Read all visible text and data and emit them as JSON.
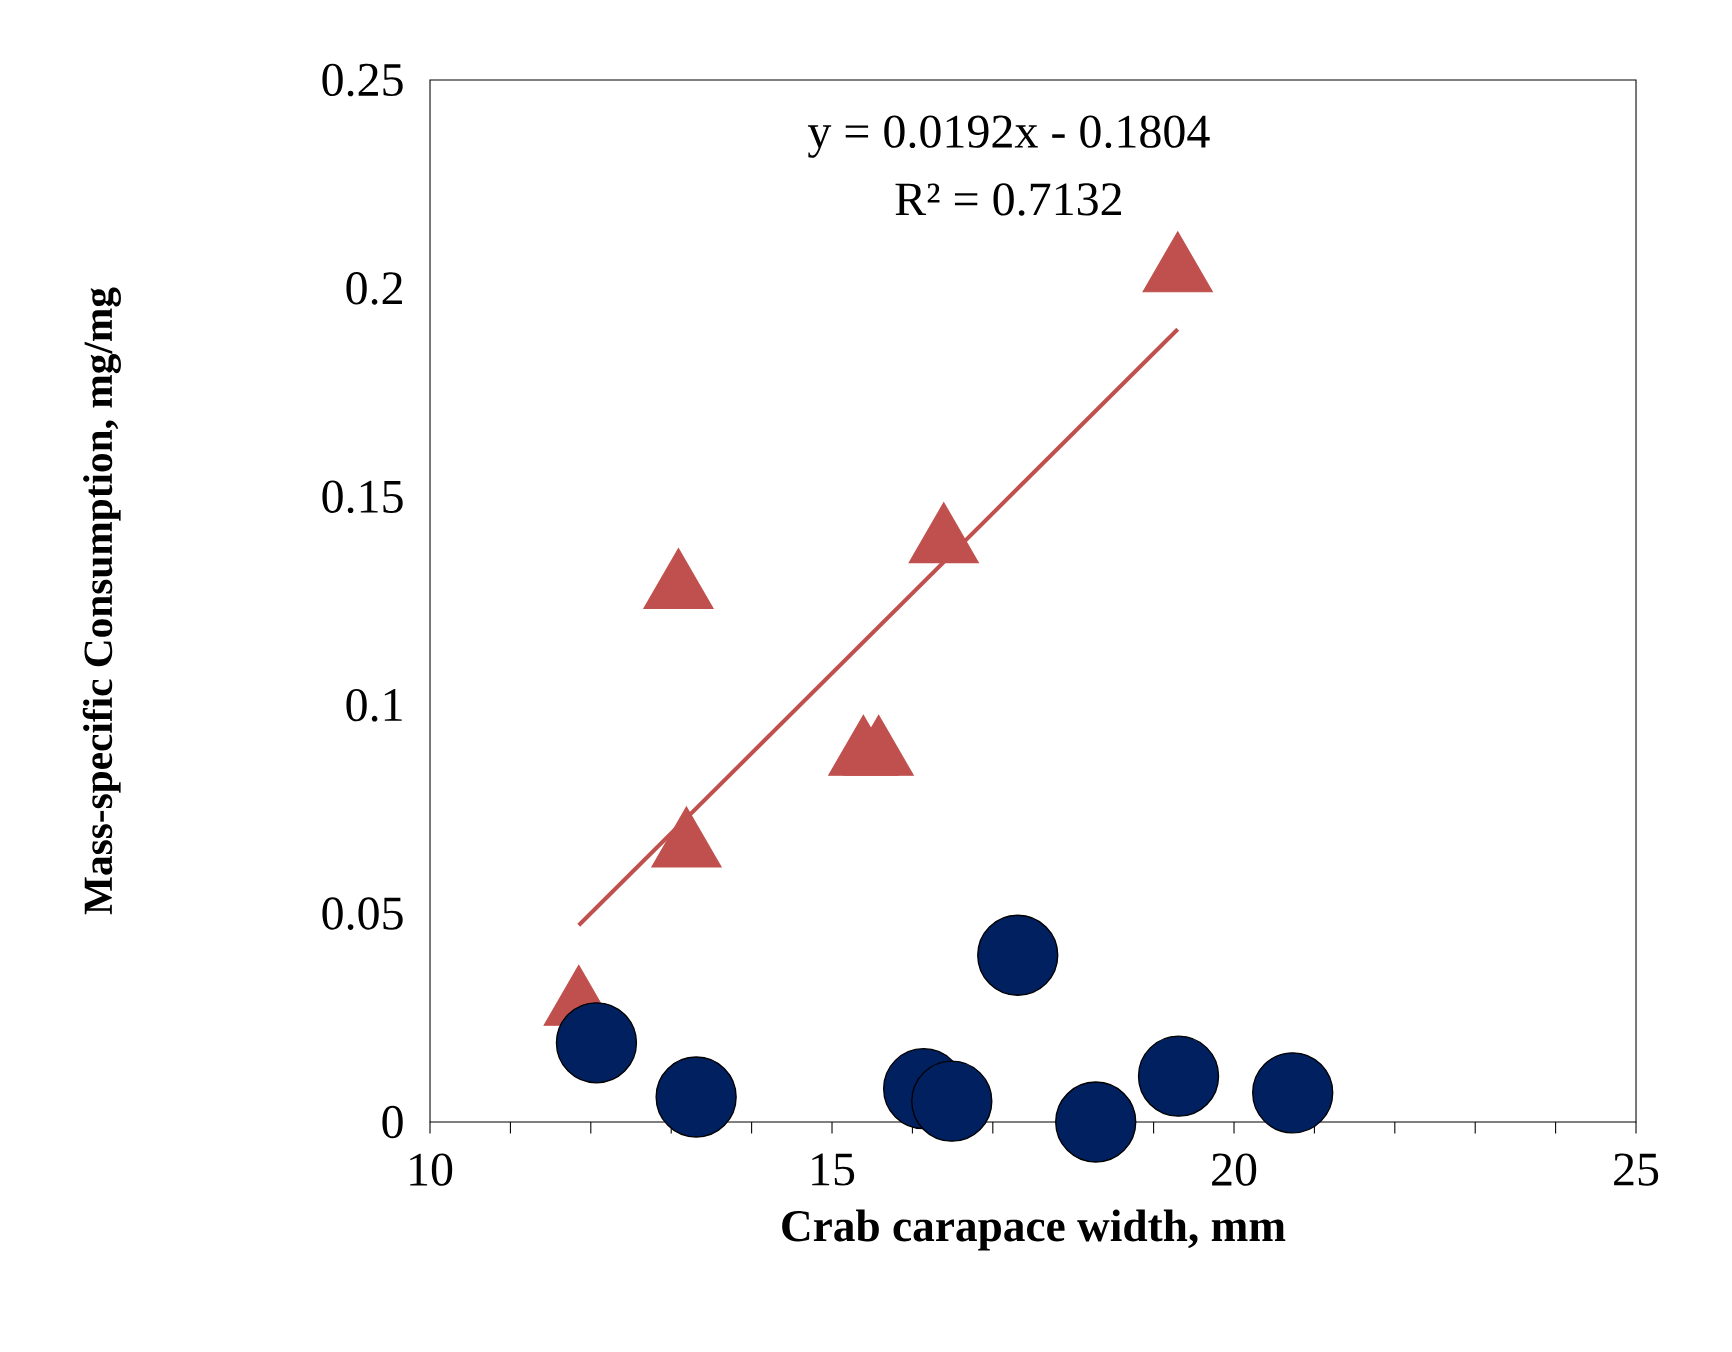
{
  "chart_data": {
    "type": "scatter",
    "xlabel": "Crab carapace width, mm",
    "ylabel": "Mass-specific Consumption, mg/mg",
    "annotations": [
      "y = 0.0192x - 0.1804",
      "R² = 0.7132"
    ],
    "xlim": [
      10,
      25
    ],
    "ylim": [
      0,
      0.25
    ],
    "xticks": [
      10,
      {
        "value": 11,
        "label": null
      },
      {
        "value": 12,
        "label": null
      },
      {
        "value": 13,
        "label": null
      },
      {
        "value": 14,
        "label": null
      },
      15,
      {
        "value": 16,
        "label": null
      },
      {
        "value": 17,
        "label": null
      },
      {
        "value": 18,
        "label": null
      },
      {
        "value": 19,
        "label": null
      },
      20,
      {
        "value": 21,
        "label": null
      },
      {
        "value": 22,
        "label": null
      },
      {
        "value": 23,
        "label": null
      },
      {
        "value": 24,
        "label": null
      },
      25
    ],
    "yticks": [
      0,
      0.05,
      0.1,
      0.15,
      0.2,
      0.25
    ],
    "grid": false,
    "series": [
      {
        "marker": "triangle",
        "color": "#c0504d",
        "x": [
          11.85,
          13.09,
          13.19,
          15.39,
          15.58,
          16.39,
          19.3
        ],
        "values": [
          0.028,
          0.128,
          0.066,
          0.088,
          0.088,
          0.139,
          0.204
        ]
      },
      {
        "marker": "circle",
        "color": "#002060",
        "x": [
          12.07,
          13.31,
          16.14,
          16.49,
          17.31,
          18.28,
          19.31,
          20.73
        ],
        "values": [
          0.019,
          0.006,
          0.008,
          0.005,
          0.04,
          0.0,
          0.011,
          0.007
        ]
      },
      {
        "type": "line",
        "marker": "none",
        "line_style": "solid",
        "color": "#c0504d",
        "x": [
          11.85,
          19.3
        ],
        "values": [
          0.0472,
          0.1902
        ]
      }
    ]
  }
}
